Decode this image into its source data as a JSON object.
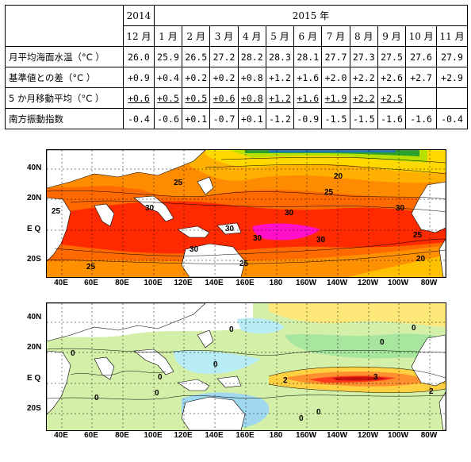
{
  "table": {
    "year_2014": "2014",
    "year_2015": "2015 年",
    "months": [
      "12 月",
      "1 月",
      "2 月",
      "3 月",
      "4 月",
      "5 月",
      "6 月",
      "7 月",
      "8 月",
      "9 月",
      "10 月",
      "11 月"
    ],
    "rows": [
      {
        "label": "月平均海面水温（°C ）",
        "values": [
          "26.0",
          "25.9",
          "26.5",
          "27.2",
          "28.2",
          "28.3",
          "28.1",
          "27.7",
          "27.3",
          "27.5",
          "27.6",
          "27.9"
        ],
        "underlined": []
      },
      {
        "label": "基準値との差（°C ）",
        "values": [
          "+0.9",
          "+0.4",
          "+0.2",
          "+0.2",
          "+0.8",
          "+1.2",
          "+1.6",
          "+2.0",
          "+2.2",
          "+2.6",
          "+2.7",
          "+2.9"
        ],
        "underlined": []
      },
      {
        "label": "5 か月移動平均（°C ）",
        "values": [
          "+0.6",
          "+0.5",
          "+0.5",
          "+0.6",
          "+0.8",
          "+1.2",
          "+1.6",
          "+1.9",
          "+2.2",
          "+2.5",
          "",
          ""
        ],
        "underlined": [
          0,
          1,
          2,
          3,
          4,
          5,
          6,
          7,
          8,
          9
        ]
      },
      {
        "label": "南方振動指数",
        "values": [
          "-0.4",
          "-0.6",
          "+0.1",
          "-0.7",
          "+0.1",
          "-1.2",
          "-0.9",
          "-1.5",
          "-1.5",
          "-1.6",
          "-1.6",
          "-0.4"
        ],
        "underlined": []
      }
    ]
  },
  "maps": {
    "lat_labels": [
      "40N",
      "20N",
      "E Q",
      "20S"
    ],
    "lon_labels": [
      "40E",
      "60E",
      "80E",
      "100E",
      "120E",
      "140E",
      "160E",
      "180",
      "160W",
      "140W",
      "120W",
      "100W",
      "80W"
    ],
    "top_contour_labels": [
      "20",
      "25",
      "30",
      "30",
      "30",
      "25",
      "30",
      "30",
      "25",
      "25",
      "20",
      "25",
      "25",
      "30",
      "30"
    ],
    "bottom_contour_labels": [
      "0",
      "0",
      "0",
      "0",
      "0",
      "2",
      "3",
      "2",
      "0",
      "0",
      "0",
      "0",
      "0"
    ]
  }
}
